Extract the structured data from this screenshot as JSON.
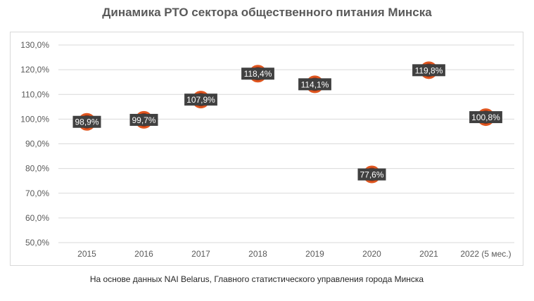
{
  "chart_data": {
    "type": "scatter",
    "title": "Динамика РТО сектора общественного питания Минска",
    "categories": [
      "2015",
      "2016",
      "2017",
      "2018",
      "2019",
      "2020",
      "2021",
      "2022 (5 мес.)"
    ],
    "values": [
      98.9,
      99.7,
      107.9,
      118.4,
      114.1,
      77.6,
      119.8,
      100.8
    ],
    "data_labels": [
      "98,9%",
      "99,7%",
      "107,9%",
      "118,4%",
      "114,1%",
      "77,6%",
      "119,8%",
      "100,8%"
    ],
    "ylim": [
      50,
      130
    ],
    "yticks": [
      50,
      60,
      70,
      80,
      90,
      100,
      110,
      120,
      130
    ],
    "ytick_labels": [
      "50,0%",
      "60,0%",
      "70,0%",
      "80,0%",
      "90,0%",
      "100,0%",
      "110,0%",
      "120,0%",
      "130,0%"
    ],
    "grid": true,
    "colors": {
      "marker_fill": "#8b2d14",
      "marker_edge": "#e0561f",
      "label_bg": "#404040",
      "label_text": "#ffffff",
      "grid": "#d9d9d9",
      "axis_text": "#595959"
    }
  },
  "footer": {
    "source": "На основе данных NAI Belarus, Главного статистического управления города Минска"
  }
}
